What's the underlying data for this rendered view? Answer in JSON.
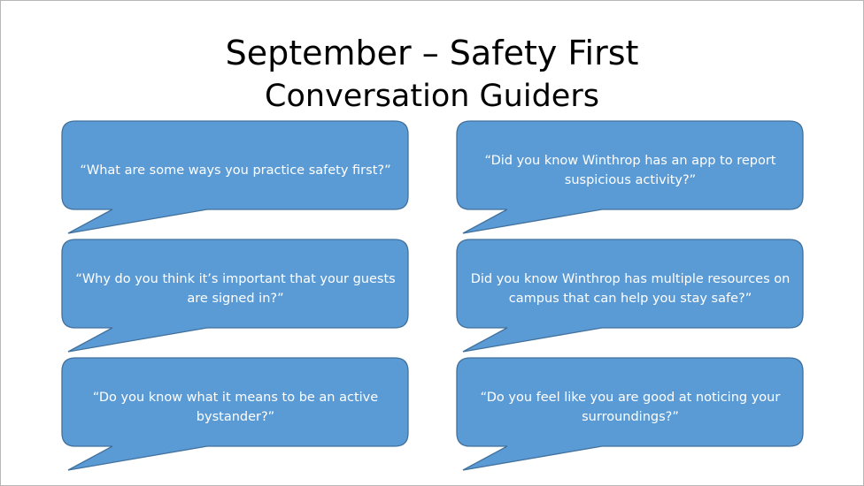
{
  "slide": {
    "title": "September – Safety First",
    "subtitle": "Conversation Guiders"
  },
  "bubbles": [
    {
      "text": "“What are some ways you practice safety first?”"
    },
    {
      "text": "“Did you know Winthrop has an app to report suspicious activity?”"
    },
    {
      "text": "“Why do you think it’s important that your guests are signed in?”"
    },
    {
      "text": "Did you know Winthrop has multiple resources on campus that can help you stay safe?”"
    },
    {
      "text": "“Do you know what it means to be an active bystander?”"
    },
    {
      "text": "“Do you feel like you are good at noticing your surroundings?”"
    }
  ],
  "colors": {
    "bubble_fill": "#5b9bd5",
    "bubble_stroke": "#41719c",
    "bubble_text": "#ffffff"
  }
}
